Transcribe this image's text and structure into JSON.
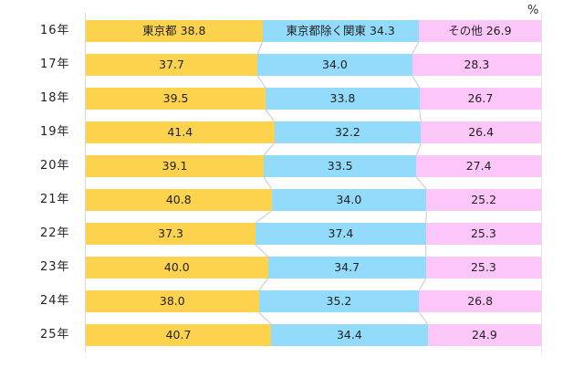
{
  "unit_label": "%",
  "colors": {
    "tokyo": "#fdd34e",
    "kanto_ex_tokyo": "#92dbfb",
    "other": "#fdc6f8"
  },
  "rows": [
    {
      "label": "16年",
      "text": [
        "東京都 38.8",
        "東京都除く関東 34.3",
        "その他 26.9"
      ]
    },
    {
      "label": "17年",
      "text": [
        "37.7",
        "34.0",
        "28.3"
      ]
    },
    {
      "label": "18年",
      "text": [
        "39.5",
        "33.8",
        "26.7"
      ]
    },
    {
      "label": "19年",
      "text": [
        "41.4",
        "32.2",
        "26.4"
      ]
    },
    {
      "label": "20年",
      "text": [
        "39.1",
        "33.5",
        "27.4"
      ]
    },
    {
      "label": "21年",
      "text": [
        "40.8",
        "34.0",
        "25.2"
      ]
    },
    {
      "label": "22年",
      "text": [
        "37.3",
        "37.4",
        "25.3"
      ]
    },
    {
      "label": "23年",
      "text": [
        "40.0",
        "34.7",
        "25.3"
      ]
    },
    {
      "label": "24年",
      "text": [
        "38.0",
        "35.2",
        "26.8"
      ]
    },
    {
      "label": "25年",
      "text": [
        "40.7",
        "34.4",
        "24.9"
      ]
    }
  ],
  "chart_data": {
    "type": "bar",
    "stacked": true,
    "orientation": "horizontal",
    "percent_stacked": true,
    "title": "",
    "unit": "%",
    "categories": [
      "16年",
      "17年",
      "18年",
      "19年",
      "20年",
      "21年",
      "22年",
      "23年",
      "24年",
      "25年"
    ],
    "series": [
      {
        "name": "東京都",
        "color": "#fdd34e",
        "values": [
          38.8,
          37.7,
          39.5,
          41.4,
          39.1,
          40.8,
          37.3,
          40.0,
          38.0,
          40.7
        ]
      },
      {
        "name": "東京都除く関東",
        "color": "#92dbfb",
        "values": [
          34.3,
          34.0,
          33.8,
          32.2,
          33.5,
          34.0,
          37.4,
          34.7,
          35.2,
          34.4
        ]
      },
      {
        "name": "その他",
        "color": "#fdc6f8",
        "values": [
          26.9,
          28.3,
          26.7,
          26.4,
          27.4,
          25.2,
          25.3,
          25.3,
          26.8,
          24.9
        ]
      }
    ],
    "xlim": [
      0,
      100
    ],
    "legend": "inline labels in first bar",
    "grid": false,
    "series_lines": true
  }
}
